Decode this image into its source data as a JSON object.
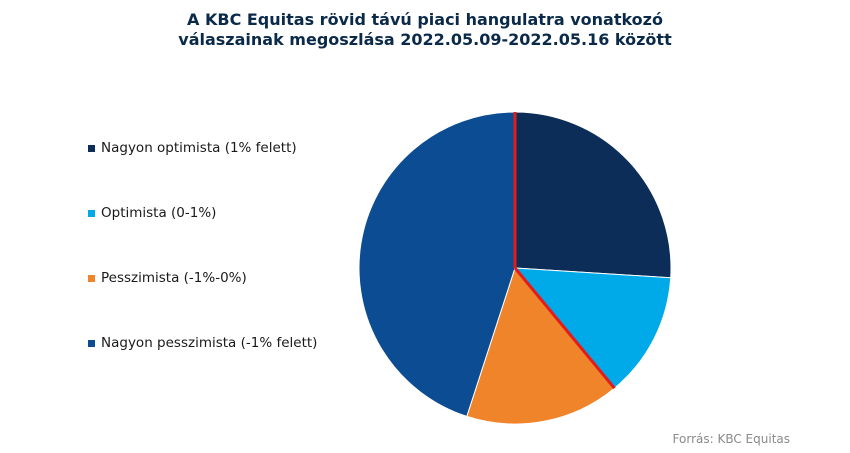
{
  "chart_data": {
    "type": "pie",
    "title_line1": "A KBC Equitas rövid távú piaci  hangulatra vonatkozó",
    "title_line2": "válaszainak megoszlása 2022.05.09-2022.05.16 között",
    "slices": [
      {
        "label": "Nagyon optimista (1% felett)",
        "value": 26,
        "color": "#0b2d57"
      },
      {
        "label": "Optimista (0-1%)",
        "value": 13,
        "color": "#00a9e8"
      },
      {
        "label": "Pesszimista (-1%-0%)",
        "value": 16,
        "color": "#f0842a"
      },
      {
        "label": "Nagyon pesszimista (-1% felett)",
        "value": 45,
        "color": "#0b4c93"
      }
    ],
    "highlight_color": "#e51b1b",
    "legend_position": "left"
  },
  "source": "Forrás: KBC Equitas"
}
